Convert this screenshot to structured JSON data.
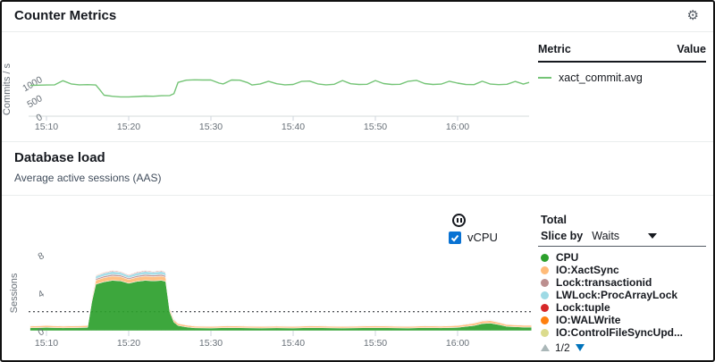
{
  "counter_section": {
    "title": "Counter Metrics",
    "settings_icon": "⚙",
    "legend_table": {
      "metric_header": "Metric",
      "value_header": "Value",
      "rows": [
        {
          "metric": "xact_commit.avg",
          "color": "#74c476",
          "value": ""
        }
      ]
    }
  },
  "load_section": {
    "title": "Database load",
    "subtitle": "Average active sessions (AAS)",
    "vcpu_label": "vCPU",
    "total_label": "Total",
    "slice_by_label": "Slice by",
    "slice_by_value": "Waits",
    "pagination": {
      "current": "1/2"
    },
    "legend": [
      {
        "name": "CPU",
        "color": "#2ca02c"
      },
      {
        "name": "IO:XactSync",
        "color": "#ffbb78"
      },
      {
        "name": "Lock:transactionid",
        "color": "#bc8f8f"
      },
      {
        "name": "LWLock:ProcArrayLock",
        "color": "#9edae5"
      },
      {
        "name": "Lock:tuple",
        "color": "#d62728"
      },
      {
        "name": "IO:WALWrite",
        "color": "#ff7f0e"
      },
      {
        "name": "IO:ControlFileSyncUpd...",
        "color": "#dbdb8d"
      }
    ]
  },
  "chart_data": [
    {
      "type": "line",
      "title": "Counter Metrics",
      "ylabel": "Commits / s",
      "series_name": "xact_commit.avg",
      "color": "#74c476",
      "x_unit": "minutes since 15:08",
      "x_start_label": "15:08",
      "x_end_label": "16:08",
      "ylim": [
        0,
        2100
      ],
      "yticks": [
        {
          "v": 0,
          "label": "0"
        },
        {
          "v": 500,
          "label": "500"
        },
        {
          "v": 1000,
          "label": "1000"
        }
      ],
      "xticks": [
        {
          "t": 2,
          "label": "15:10"
        },
        {
          "t": 12,
          "label": "15:20"
        },
        {
          "t": 22,
          "label": "15:30"
        },
        {
          "t": 32,
          "label": "15:40"
        },
        {
          "t": 42,
          "label": "15:50"
        },
        {
          "t": 52,
          "label": "16:00"
        }
      ],
      "x": [
        0,
        2,
        3,
        4,
        5,
        6,
        7,
        8,
        8.5,
        9,
        10,
        11,
        12,
        13,
        14,
        15,
        16,
        17,
        17.5,
        18,
        19,
        20,
        21,
        22,
        23,
        23.5,
        24.5,
        25.5,
        26.5,
        27,
        28,
        29,
        30,
        31,
        32,
        33,
        34,
        35,
        36,
        37,
        38,
        39,
        40,
        41,
        42,
        43,
        44,
        45,
        46,
        47,
        48,
        49,
        50,
        51,
        52,
        53,
        54,
        55,
        56,
        57,
        58,
        59,
        60,
        60.7
      ],
      "values": [
        820,
        830,
        835,
        945,
        860,
        835,
        840,
        830,
        700,
        560,
        530,
        515,
        515,
        525,
        535,
        530,
        545,
        550,
        600,
        900,
        960,
        970,
        965,
        965,
        880,
        860,
        965,
        960,
        890,
        830,
        860,
        930,
        865,
        835,
        845,
        925,
        935,
        860,
        835,
        850,
        950,
        865,
        845,
        850,
        950,
        870,
        845,
        850,
        930,
        955,
        870,
        845,
        855,
        930,
        880,
        845,
        840,
        930,
        855,
        840,
        850,
        925,
        855,
        900
      ]
    },
    {
      "type": "area",
      "title": "Database load",
      "subtitle": "Average active sessions (AAS)",
      "ylabel": "Sessions",
      "stacked": true,
      "x_unit": "minutes since 15:08",
      "x_start_label": "15:08",
      "x_end_label": "16:09",
      "ylim": [
        0,
        8
      ],
      "vcpu_line": {
        "value": 2,
        "style": "dashed",
        "label": "vCPU"
      },
      "yticks": [
        {
          "v": 0,
          "label": "0"
        },
        {
          "v": 4,
          "label": "4"
        },
        {
          "v": 8,
          "label": "8"
        }
      ],
      "xticks": [
        {
          "t": 2,
          "label": "15:10"
        },
        {
          "t": 12,
          "label": "15:20"
        },
        {
          "t": 22,
          "label": "15:30"
        },
        {
          "t": 32,
          "label": "15:40"
        },
        {
          "t": 42,
          "label": "15:50"
        },
        {
          "t": 52,
          "label": "16:00"
        }
      ],
      "x": [
        0,
        2,
        4,
        6,
        7,
        7.5,
        8,
        9,
        10,
        11,
        12,
        13,
        14,
        15,
        16,
        16.5,
        17,
        17.5,
        18,
        19,
        20,
        22,
        24,
        26,
        28,
        30,
        32,
        34,
        36,
        38,
        40,
        42,
        44,
        46,
        48,
        50,
        52,
        53,
        54,
        55,
        56,
        57,
        58,
        60,
        61
      ],
      "series": [
        {
          "name": "CPU",
          "color": "#2ca02c",
          "values": [
            0.3,
            0.35,
            0.3,
            0.33,
            0.35,
            3.0,
            4.9,
            5.15,
            5.3,
            5.25,
            5.0,
            5.2,
            5.3,
            5.25,
            5.3,
            5.2,
            2.0,
            0.9,
            0.55,
            0.4,
            0.3,
            0.28,
            0.32,
            0.3,
            0.28,
            0.3,
            0.28,
            0.32,
            0.3,
            0.28,
            0.3,
            0.32,
            0.3,
            0.28,
            0.32,
            0.3,
            0.35,
            0.45,
            0.55,
            0.75,
            0.8,
            0.65,
            0.45,
            0.38,
            0.38
          ]
        },
        {
          "name": "IO:XactSync",
          "color": "#ffbb78",
          "values": [
            0.18,
            0.2,
            0.18,
            0.19,
            0.2,
            0.32,
            0.42,
            0.44,
            0.45,
            0.44,
            0.4,
            0.43,
            0.45,
            0.44,
            0.45,
            0.43,
            0.3,
            0.24,
            0.21,
            0.19,
            0.18,
            0.17,
            0.19,
            0.18,
            0.17,
            0.18,
            0.17,
            0.19,
            0.18,
            0.17,
            0.18,
            0.19,
            0.18,
            0.17,
            0.19,
            0.18,
            0.2,
            0.22,
            0.24,
            0.26,
            0.26,
            0.23,
            0.2,
            0.19,
            0.19
          ]
        },
        {
          "name": "Lock:transactionid",
          "color": "#bc8f8f",
          "values": [
            0.02,
            0.02,
            0.02,
            0.02,
            0.02,
            0.1,
            0.16,
            0.17,
            0.18,
            0.17,
            0.15,
            0.17,
            0.18,
            0.17,
            0.18,
            0.17,
            0.08,
            0.04,
            0.03,
            0.02,
            0.02,
            0.02,
            0.02,
            0.02,
            0.02,
            0.02,
            0.02,
            0.02,
            0.02,
            0.02,
            0.02,
            0.02,
            0.02,
            0.02,
            0.02,
            0.02,
            0.02,
            0.03,
            0.03,
            0.04,
            0.04,
            0.03,
            0.02,
            0.02,
            0.02
          ]
        },
        {
          "name": "LWLock:ProcArrayLock",
          "color": "#9edae5",
          "values": [
            0.05,
            0.05,
            0.05,
            0.05,
            0.05,
            0.18,
            0.28,
            0.3,
            0.32,
            0.3,
            0.27,
            0.3,
            0.32,
            0.3,
            0.32,
            0.3,
            0.12,
            0.08,
            0.06,
            0.05,
            0.05,
            0.05,
            0.05,
            0.05,
            0.05,
            0.05,
            0.05,
            0.05,
            0.05,
            0.05,
            0.05,
            0.05,
            0.05,
            0.05,
            0.05,
            0.05,
            0.05,
            0.06,
            0.06,
            0.07,
            0.07,
            0.06,
            0.05,
            0.05,
            0.05
          ]
        },
        {
          "name": "Lock:tuple",
          "color": "#d62728",
          "values": [
            0,
            0,
            0,
            0,
            0,
            0.03,
            0.06,
            0.07,
            0.07,
            0.07,
            0.06,
            0.07,
            0.07,
            0.07,
            0.07,
            0.06,
            0.02,
            0.01,
            0,
            0,
            0,
            0,
            0,
            0,
            0,
            0,
            0,
            0,
            0,
            0,
            0,
            0,
            0,
            0,
            0,
            0,
            0,
            0,
            0,
            0,
            0,
            0,
            0,
            0,
            0
          ]
        },
        {
          "name": "IO:WALWrite",
          "color": "#ff7f0e",
          "values": [
            0.02,
            0.02,
            0.02,
            0.02,
            0.02,
            0.03,
            0.05,
            0.05,
            0.05,
            0.05,
            0.05,
            0.05,
            0.05,
            0.05,
            0.05,
            0.05,
            0.03,
            0.02,
            0.02,
            0.02,
            0.02,
            0.02,
            0.02,
            0.02,
            0.02,
            0.02,
            0.02,
            0.02,
            0.02,
            0.02,
            0.02,
            0.02,
            0.02,
            0.02,
            0.02,
            0.02,
            0.02,
            0.02,
            0.02,
            0.03,
            0.03,
            0.02,
            0.02,
            0.02,
            0.02
          ]
        },
        {
          "name": "IO:ControlFileSyncUpdate",
          "color": "#dbdb8d",
          "values": [
            0.01,
            0.01,
            0.01,
            0.01,
            0.01,
            0.01,
            0.01,
            0.01,
            0.01,
            0.01,
            0.01,
            0.01,
            0.01,
            0.01,
            0.01,
            0.01,
            0.01,
            0.01,
            0.01,
            0.01,
            0.01,
            0.01,
            0.01,
            0.01,
            0.01,
            0.01,
            0.01,
            0.01,
            0.01,
            0.01,
            0.01,
            0.01,
            0.01,
            0.01,
            0.01,
            0.01,
            0.01,
            0.01,
            0.01,
            0.01,
            0.01,
            0.01,
            0.01,
            0.01,
            0.01
          ]
        }
      ]
    }
  ]
}
